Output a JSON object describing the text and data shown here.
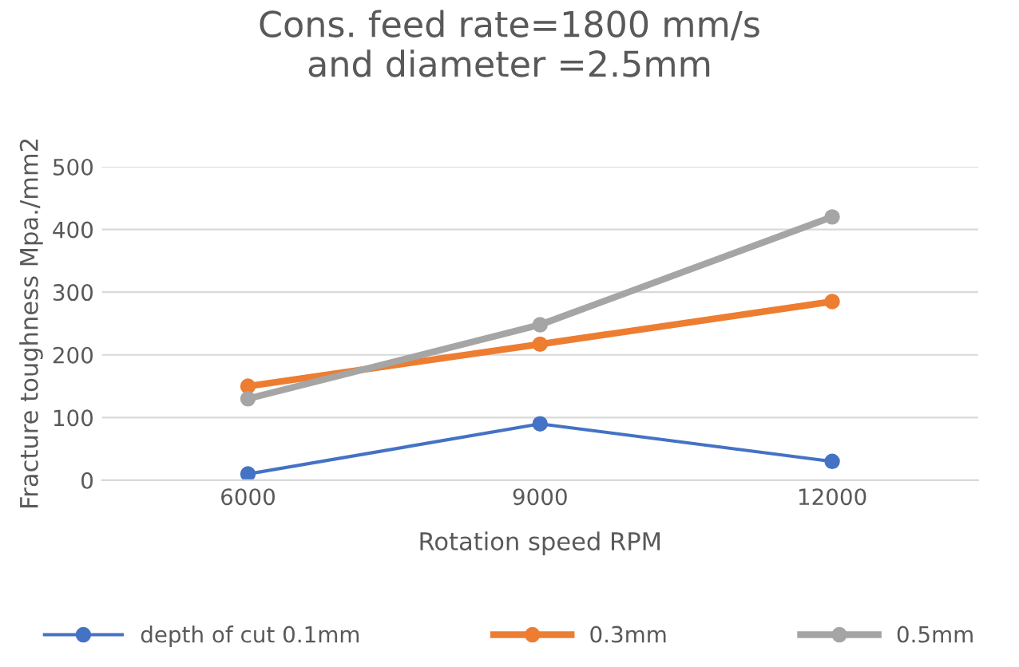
{
  "chart_data": {
    "type": "line",
    "title": "Cons. feed rate=1800 mm/s\nand diameter =2.5mm",
    "xlabel": "Rotation speed RPM",
    "ylabel": "Fracture toughness Mpa./mm2",
    "categories": [
      "6000",
      "9000",
      "12000"
    ],
    "series": [
      {
        "name": "depth of cut 0.1mm",
        "color": "#4472c4",
        "values": [
          10,
          90,
          30
        ]
      },
      {
        "name": "0.3mm",
        "color": "#ed7d31",
        "values": [
          150,
          217,
          285
        ]
      },
      {
        "name": "0.5mm",
        "color": "#a5a5a5",
        "values": [
          130,
          248,
          420
        ]
      }
    ],
    "ylim": [
      0,
      500
    ],
    "yticks": [
      0,
      100,
      200,
      300,
      400,
      500
    ],
    "grid": "y",
    "legend": "bottom",
    "marker": "circle",
    "line_style": "solid"
  }
}
